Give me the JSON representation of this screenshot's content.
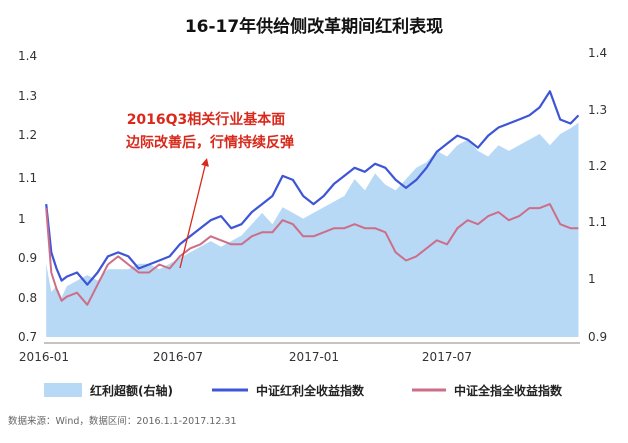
{
  "chart_data": {
    "type": "line",
    "title": "16-17年供给侧改革期间红利表现",
    "annotation": {
      "lines": [
        "2016Q3相关行业基本面",
        "边际改善后，行情持续反弹"
      ],
      "date": "2016-07"
    },
    "source": "数据来源：Wind，数据区间：2016.1.1-2017.12.31",
    "x_ticks": [
      "2016-01",
      "2016-07",
      "2017-01",
      "2017-07"
    ],
    "x_range": [
      "2016-01-01",
      "2017-12-31"
    ],
    "left_axis": {
      "ticks": [
        "0.7",
        "0.8",
        "0.9",
        "1",
        "1.1",
        "1.2",
        "1.3",
        "1.4"
      ],
      "ylim": [
        0.7,
        1.4
      ]
    },
    "right_axis": {
      "ticks": [
        "0.9",
        "1",
        "1.1",
        "1.2",
        "1.3",
        "1.4"
      ],
      "ylim": [
        0.9,
        1.4
      ]
    },
    "series": [
      {
        "name": "红利超额(右轴)",
        "type": "area",
        "axis": "right",
        "color": "#b8d9f5",
        "points": [
          [
            "2016-01-04",
            1.03
          ],
          [
            "2016-01-11",
            0.98
          ],
          [
            "2016-01-18",
            0.99
          ],
          [
            "2016-01-25",
            0.97
          ],
          [
            "2016-02-01",
            0.99
          ],
          [
            "2016-02-15",
            1.0
          ],
          [
            "2016-02-29",
            1.01
          ],
          [
            "2016-03-14",
            1.0
          ],
          [
            "2016-03-28",
            1.02
          ],
          [
            "2016-04-11",
            1.02
          ],
          [
            "2016-04-25",
            1.02
          ],
          [
            "2016-05-09",
            1.03
          ],
          [
            "2016-05-23",
            1.03
          ],
          [
            "2016-06-06",
            1.02
          ],
          [
            "2016-06-20",
            1.03
          ],
          [
            "2016-07-04",
            1.04
          ],
          [
            "2016-07-18",
            1.05
          ],
          [
            "2016-08-01",
            1.06
          ],
          [
            "2016-08-15",
            1.07
          ],
          [
            "2016-08-29",
            1.06
          ],
          [
            "2016-09-12",
            1.07
          ],
          [
            "2016-09-26",
            1.08
          ],
          [
            "2016-10-10",
            1.1
          ],
          [
            "2016-10-24",
            1.12
          ],
          [
            "2016-11-07",
            1.1
          ],
          [
            "2016-11-21",
            1.13
          ],
          [
            "2016-12-05",
            1.12
          ],
          [
            "2016-12-19",
            1.11
          ],
          [
            "2017-01-02",
            1.12
          ],
          [
            "2017-01-16",
            1.13
          ],
          [
            "2017-01-30",
            1.14
          ],
          [
            "2017-02-13",
            1.15
          ],
          [
            "2017-02-27",
            1.18
          ],
          [
            "2017-03-13",
            1.16
          ],
          [
            "2017-03-27",
            1.19
          ],
          [
            "2017-04-10",
            1.17
          ],
          [
            "2017-04-24",
            1.16
          ],
          [
            "2017-05-08",
            1.18
          ],
          [
            "2017-05-22",
            1.2
          ],
          [
            "2017-06-05",
            1.21
          ],
          [
            "2017-06-19",
            1.23
          ],
          [
            "2017-07-03",
            1.22
          ],
          [
            "2017-07-17",
            1.24
          ],
          [
            "2017-07-31",
            1.25
          ],
          [
            "2017-08-14",
            1.23
          ],
          [
            "2017-08-28",
            1.22
          ],
          [
            "2017-09-11",
            1.24
          ],
          [
            "2017-09-25",
            1.23
          ],
          [
            "2017-10-09",
            1.24
          ],
          [
            "2017-10-23",
            1.25
          ],
          [
            "2017-11-06",
            1.26
          ],
          [
            "2017-11-20",
            1.24
          ],
          [
            "2017-12-04",
            1.26
          ],
          [
            "2017-12-18",
            1.27
          ],
          [
            "2017-12-29",
            1.28
          ]
        ]
      },
      {
        "name": "中证红利全收益指数",
        "type": "line",
        "axis": "left",
        "color": "#3d55d6",
        "points": [
          [
            "2016-01-04",
            1.03
          ],
          [
            "2016-01-11",
            0.91
          ],
          [
            "2016-01-18",
            0.87
          ],
          [
            "2016-01-25",
            0.84
          ],
          [
            "2016-02-01",
            0.85
          ],
          [
            "2016-02-15",
            0.86
          ],
          [
            "2016-02-29",
            0.83
          ],
          [
            "2016-03-14",
            0.86
          ],
          [
            "2016-03-28",
            0.9
          ],
          [
            "2016-04-11",
            0.91
          ],
          [
            "2016-04-25",
            0.9
          ],
          [
            "2016-05-09",
            0.87
          ],
          [
            "2016-05-23",
            0.88
          ],
          [
            "2016-06-06",
            0.89
          ],
          [
            "2016-06-20",
            0.9
          ],
          [
            "2016-07-04",
            0.93
          ],
          [
            "2016-07-18",
            0.95
          ],
          [
            "2016-08-01",
            0.97
          ],
          [
            "2016-08-15",
            0.99
          ],
          [
            "2016-08-29",
            1.0
          ],
          [
            "2016-09-12",
            0.97
          ],
          [
            "2016-09-26",
            0.98
          ],
          [
            "2016-10-10",
            1.01
          ],
          [
            "2016-10-24",
            1.03
          ],
          [
            "2016-11-07",
            1.05
          ],
          [
            "2016-11-21",
            1.1
          ],
          [
            "2016-12-05",
            1.09
          ],
          [
            "2016-12-19",
            1.05
          ],
          [
            "2017-01-02",
            1.03
          ],
          [
            "2017-01-16",
            1.05
          ],
          [
            "2017-01-30",
            1.08
          ],
          [
            "2017-02-13",
            1.1
          ],
          [
            "2017-02-27",
            1.12
          ],
          [
            "2017-03-13",
            1.11
          ],
          [
            "2017-03-27",
            1.13
          ],
          [
            "2017-04-10",
            1.12
          ],
          [
            "2017-04-24",
            1.09
          ],
          [
            "2017-05-08",
            1.07
          ],
          [
            "2017-05-22",
            1.09
          ],
          [
            "2017-06-05",
            1.12
          ],
          [
            "2017-06-19",
            1.16
          ],
          [
            "2017-07-03",
            1.18
          ],
          [
            "2017-07-17",
            1.2
          ],
          [
            "2017-07-31",
            1.19
          ],
          [
            "2017-08-14",
            1.17
          ],
          [
            "2017-08-28",
            1.2
          ],
          [
            "2017-09-11",
            1.22
          ],
          [
            "2017-09-25",
            1.23
          ],
          [
            "2017-10-09",
            1.24
          ],
          [
            "2017-10-23",
            1.25
          ],
          [
            "2017-11-06",
            1.27
          ],
          [
            "2017-11-20",
            1.31
          ],
          [
            "2017-12-04",
            1.24
          ],
          [
            "2017-12-18",
            1.23
          ],
          [
            "2017-12-29",
            1.25
          ]
        ]
      },
      {
        "name": "中证全指全收益指数",
        "type": "line",
        "axis": "left",
        "color": "#cc6e88",
        "points": [
          [
            "2016-01-04",
            1.02
          ],
          [
            "2016-01-11",
            0.86
          ],
          [
            "2016-01-18",
            0.82
          ],
          [
            "2016-01-25",
            0.79
          ],
          [
            "2016-02-01",
            0.8
          ],
          [
            "2016-02-15",
            0.81
          ],
          [
            "2016-02-29",
            0.78
          ],
          [
            "2016-03-14",
            0.83
          ],
          [
            "2016-03-28",
            0.88
          ],
          [
            "2016-04-11",
            0.9
          ],
          [
            "2016-04-25",
            0.88
          ],
          [
            "2016-05-09",
            0.86
          ],
          [
            "2016-05-23",
            0.86
          ],
          [
            "2016-06-06",
            0.88
          ],
          [
            "2016-06-20",
            0.87
          ],
          [
            "2016-07-04",
            0.9
          ],
          [
            "2016-07-18",
            0.92
          ],
          [
            "2016-08-01",
            0.93
          ],
          [
            "2016-08-15",
            0.95
          ],
          [
            "2016-08-29",
            0.94
          ],
          [
            "2016-09-12",
            0.93
          ],
          [
            "2016-09-26",
            0.93
          ],
          [
            "2016-10-10",
            0.95
          ],
          [
            "2016-10-24",
            0.96
          ],
          [
            "2016-11-07",
            0.96
          ],
          [
            "2016-11-21",
            0.99
          ],
          [
            "2016-12-05",
            0.98
          ],
          [
            "2016-12-19",
            0.95
          ],
          [
            "2017-01-02",
            0.95
          ],
          [
            "2017-01-16",
            0.96
          ],
          [
            "2017-01-30",
            0.97
          ],
          [
            "2017-02-13",
            0.97
          ],
          [
            "2017-02-27",
            0.98
          ],
          [
            "2017-03-13",
            0.97
          ],
          [
            "2017-03-27",
            0.97
          ],
          [
            "2017-04-10",
            0.96
          ],
          [
            "2017-04-24",
            0.91
          ],
          [
            "2017-05-08",
            0.89
          ],
          [
            "2017-05-22",
            0.9
          ],
          [
            "2017-06-05",
            0.92
          ],
          [
            "2017-06-19",
            0.94
          ],
          [
            "2017-07-03",
            0.93
          ],
          [
            "2017-07-17",
            0.97
          ],
          [
            "2017-07-31",
            0.99
          ],
          [
            "2017-08-14",
            0.98
          ],
          [
            "2017-08-28",
            1.0
          ],
          [
            "2017-09-11",
            1.01
          ],
          [
            "2017-09-25",
            0.99
          ],
          [
            "2017-10-09",
            1.0
          ],
          [
            "2017-10-23",
            1.02
          ],
          [
            "2017-11-06",
            1.02
          ],
          [
            "2017-11-20",
            1.03
          ],
          [
            "2017-12-04",
            0.98
          ],
          [
            "2017-12-18",
            0.97
          ],
          [
            "2017-12-29",
            0.97
          ]
        ]
      }
    ]
  }
}
